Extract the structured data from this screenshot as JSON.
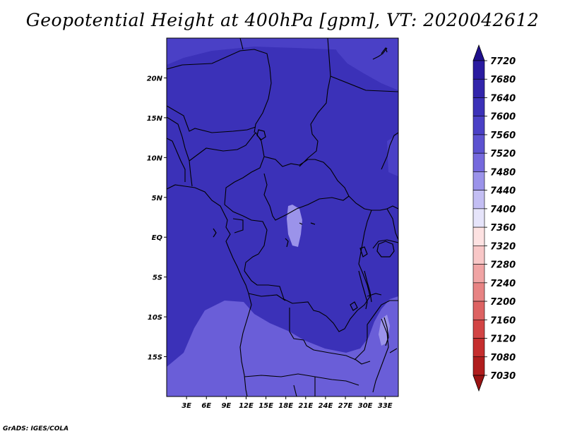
{
  "title": "Geopotential Height at 400hPa [gpm], VT: 2020042612",
  "credit": "GrADS: IGES/COLA",
  "map": {
    "lon_range": [
      0,
      35
    ],
    "lat_range": [
      -20,
      25
    ],
    "lon_ticks": [
      "3E",
      "6E",
      "9E",
      "12E",
      "15E",
      "18E",
      "21E",
      "24E",
      "27E",
      "30E",
      "33E"
    ],
    "lat_ticks": [
      "20N",
      "15N",
      "10N",
      "5N",
      "EQ",
      "5S",
      "10S",
      "15S"
    ]
  },
  "colorbar": {
    "levels": [
      "7720",
      "7680",
      "7640",
      "7600",
      "7560",
      "7520",
      "7480",
      "7440",
      "7400",
      "7360",
      "7320",
      "7280",
      "7240",
      "7200",
      "7160",
      "7120",
      "7080",
      "7030"
    ],
    "colors": [
      "#1f0f8c",
      "#2a1ba0",
      "#3225ab",
      "#3b31b8",
      "#4a40c6",
      "#5c52d0",
      "#7569dd",
      "#9b93ea",
      "#c3bef3",
      "#e6e4fa",
      "#fde2e2",
      "#f8c7c7",
      "#f0a4a4",
      "#e78383",
      "#dd6262",
      "#d24444",
      "#c52e2e",
      "#b01d1d",
      "#9a1313"
    ],
    "color_roles": {
      "map_base": "#3b31b8",
      "map_light_band": "#4a40c6",
      "map_highlands": "#6a5ed8",
      "map_lake_region": "#9b93ea"
    }
  }
}
